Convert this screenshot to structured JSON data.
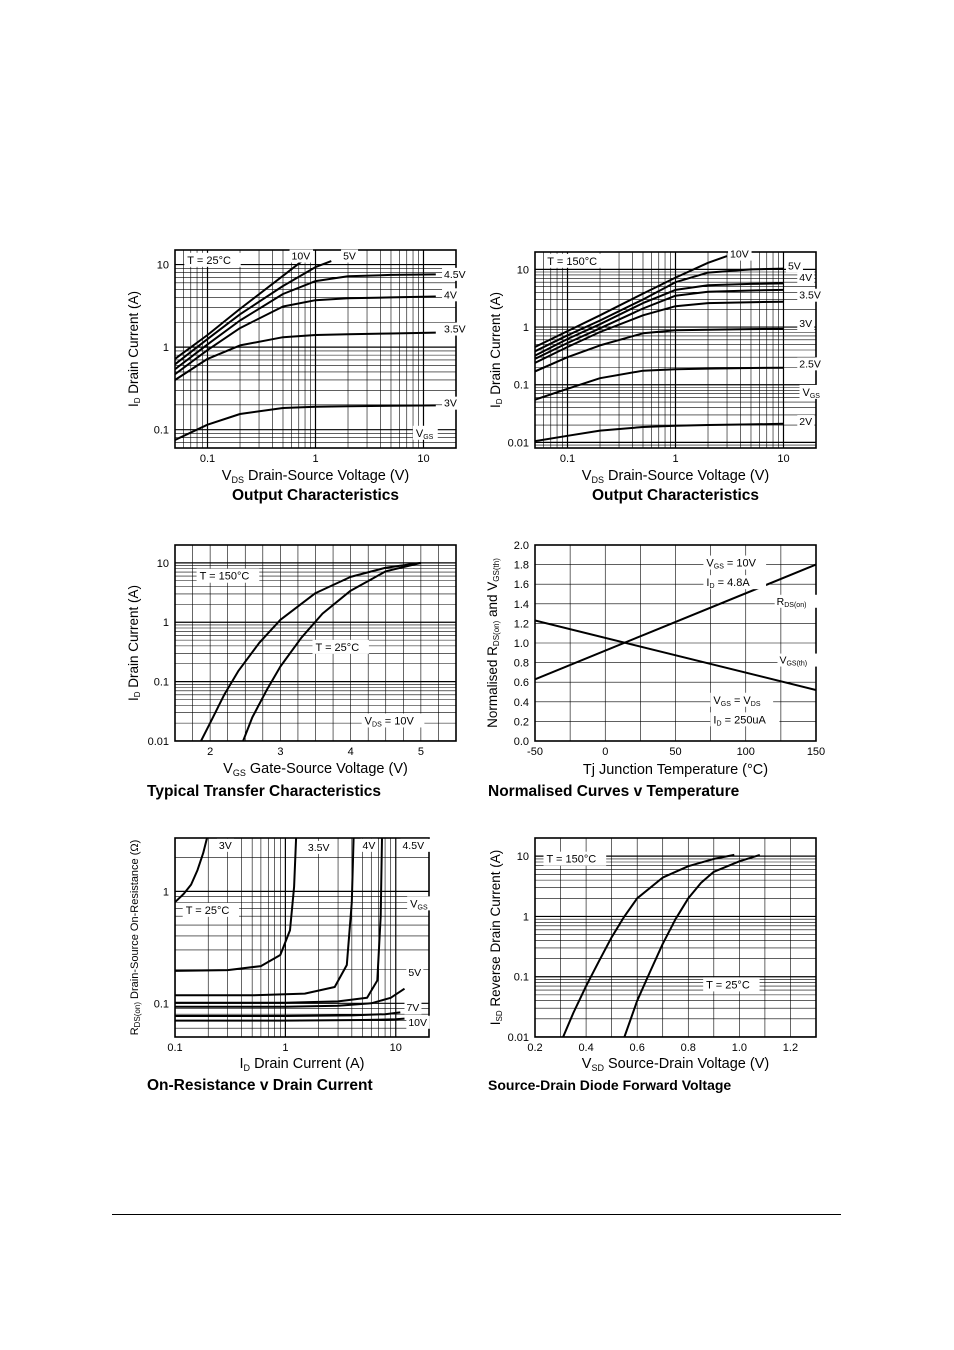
{
  "chart_data": [
    {
      "id": "c1",
      "type": "line",
      "title": "Output Characteristics",
      "xlabel": "V_DS Drain-Source Voltage (V)",
      "ylabel": "I_D Drain Current (A)",
      "xscale": "log",
      "yscale": "log",
      "xlim": [
        0.05,
        20
      ],
      "ylim": [
        0.06,
        15
      ],
      "xticks": [
        {
          "v": 0.1,
          "t": "0.1"
        },
        {
          "v": 1,
          "t": "1"
        },
        {
          "v": 10,
          "t": "10"
        }
      ],
      "yticks": [
        {
          "v": 0.1,
          "t": "0.1"
        },
        {
          "v": 1,
          "t": "1"
        },
        {
          "v": 10,
          "t": "10"
        }
      ],
      "annotations": [
        {
          "text": "T = 25°C",
          "x": 0.065,
          "y": 10.2
        },
        {
          "text": "V_GS",
          "x": 8.5,
          "y": 0.082
        }
      ],
      "series": [
        {
          "name": "10V",
          "label_at": [
            0.6,
            11.5
          ],
          "x": [
            0.05,
            0.1,
            0.2,
            0.5,
            0.75
          ],
          "y": [
            0.72,
            1.4,
            2.9,
            7.3,
            11
          ]
        },
        {
          "name": "5V",
          "label_at": [
            1.8,
            11.5
          ],
          "x": [
            0.05,
            0.1,
            0.2,
            0.5,
            1,
            1.4
          ],
          "y": [
            0.62,
            1.25,
            2.5,
            5.5,
            9.3,
            11
          ]
        },
        {
          "name": "4.5V",
          "label_at": [
            15.5,
            6.9
          ],
          "x": [
            0.05,
            0.1,
            0.2,
            0.5,
            1,
            2,
            5,
            13
          ],
          "y": [
            0.54,
            1.08,
            2.1,
            4.4,
            6.3,
            7.2,
            7.5,
            7.6
          ]
        },
        {
          "name": "4V",
          "label_at": [
            15.5,
            3.9
          ],
          "x": [
            0.05,
            0.1,
            0.2,
            0.5,
            1,
            2,
            5,
            13
          ],
          "y": [
            0.47,
            0.92,
            1.7,
            3.1,
            3.7,
            3.9,
            4.0,
            4.1
          ]
        },
        {
          "name": "3.5V",
          "label_at": [
            15.5,
            1.5
          ],
          "x": [
            0.05,
            0.1,
            0.2,
            0.5,
            1,
            2,
            5,
            13
          ],
          "y": [
            0.4,
            0.72,
            1.05,
            1.32,
            1.4,
            1.43,
            1.46,
            1.5
          ]
        },
        {
          "name": "3V",
          "label_at": [
            15.5,
            0.19
          ],
          "x": [
            0.05,
            0.1,
            0.2,
            0.5,
            1,
            2,
            5,
            13
          ],
          "y": [
            0.075,
            0.115,
            0.155,
            0.183,
            0.19,
            0.192,
            0.195,
            0.197
          ]
        }
      ]
    },
    {
      "id": "c2",
      "type": "line",
      "title": "Output Characteristics",
      "xlabel": "V_DS Drain-Source Voltage (V)",
      "ylabel": "I_D Drain Current (A)",
      "xscale": "log",
      "yscale": "log",
      "xlim": [
        0.05,
        20
      ],
      "ylim": [
        0.008,
        20
      ],
      "xticks": [
        {
          "v": 0.1,
          "t": "0.1"
        },
        {
          "v": 1,
          "t": "1"
        },
        {
          "v": 10,
          "t": "10"
        }
      ],
      "yticks": [
        {
          "v": 0.01,
          "t": "0.01"
        },
        {
          "v": 0.1,
          "t": "0.1"
        },
        {
          "v": 1,
          "t": "1"
        },
        {
          "v": 10,
          "t": "10"
        }
      ],
      "annotations": [
        {
          "text": "T = 150°C",
          "x": 0.065,
          "y": 12
        },
        {
          "text": "V_GS",
          "x": 15,
          "y": 0.064
        }
      ],
      "series": [
        {
          "name": "10V",
          "label_at": [
            3.2,
            16
          ],
          "x": [
            0.05,
            0.1,
            0.2,
            0.5,
            1,
            2,
            3
          ],
          "y": [
            0.45,
            0.85,
            1.6,
            3.8,
            7.2,
            13,
            17
          ]
        },
        {
          "name": "5V",
          "label_at": [
            11,
            10
          ],
          "x": [
            0.05,
            0.1,
            0.2,
            0.5,
            1,
            2,
            5,
            10
          ],
          "y": [
            0.38,
            0.72,
            1.3,
            3.0,
            6.0,
            8.8,
            10,
            10.3
          ]
        },
        {
          "name": "4V",
          "label_at": [
            14,
            6.3
          ],
          "x": [
            0.05,
            0.1,
            0.2,
            0.5,
            1,
            2,
            5,
            10
          ],
          "y": [
            0.32,
            0.62,
            1.12,
            2.6,
            4.4,
            5.3,
            5.6,
            5.7
          ]
        },
        {
          "name": "",
          "x": [
            0.05,
            0.1,
            0.2,
            0.5,
            1,
            2,
            5,
            10
          ],
          "y": [
            0.28,
            0.53,
            0.95,
            2.1,
            3.5,
            4.1,
            4.3,
            4.4
          ]
        },
        {
          "name": "3.5V",
          "label_at": [
            14,
            3.1
          ],
          "x": [
            0.05,
            0.1,
            0.2,
            0.5,
            1,
            2,
            5,
            10
          ],
          "y": [
            0.24,
            0.45,
            0.82,
            1.6,
            2.3,
            2.6,
            2.7,
            2.75
          ]
        },
        {
          "name": "3V",
          "label_at": [
            14,
            1.0
          ],
          "x": [
            0.05,
            0.1,
            0.2,
            0.5,
            1,
            2,
            5,
            10
          ],
          "y": [
            0.17,
            0.3,
            0.48,
            0.78,
            0.88,
            0.9,
            0.92,
            0.93
          ]
        },
        {
          "name": "2.5V",
          "label_at": [
            14,
            0.2
          ],
          "x": [
            0.05,
            0.1,
            0.2,
            0.5,
            1,
            2,
            5,
            10
          ],
          "y": [
            0.055,
            0.085,
            0.13,
            0.175,
            0.185,
            0.19,
            0.195,
            0.197
          ]
        },
        {
          "name": "2V",
          "label_at": [
            14,
            0.02
          ],
          "x": [
            0.05,
            0.1,
            0.2,
            0.5,
            1,
            2,
            5,
            10
          ],
          "y": [
            0.0105,
            0.013,
            0.016,
            0.0185,
            0.0195,
            0.02,
            0.0205,
            0.021
          ]
        }
      ]
    },
    {
      "id": "c3",
      "type": "line",
      "title": "Typical Transfer Characteristics",
      "xlabel": "V_GS Gate-Source Voltage (V)",
      "ylabel": "I_D Drain Current (A)",
      "xscale": "linear",
      "yscale": "log",
      "xlim": [
        1.5,
        5.5
      ],
      "ylim": [
        0.01,
        20
      ],
      "xticks": [
        {
          "v": 2,
          "t": "2"
        },
        {
          "v": 3,
          "t": "3"
        },
        {
          "v": 4,
          "t": "4"
        },
        {
          "v": 5,
          "t": "5"
        }
      ],
      "yticks": [
        {
          "v": 0.01,
          "t": "0.01"
        },
        {
          "v": 0.1,
          "t": "0.1"
        },
        {
          "v": 1,
          "t": "1"
        },
        {
          "v": 10,
          "t": "10"
        }
      ],
      "annotations": [
        {
          "text": "T = 150°C",
          "x": 1.85,
          "y": 5.2
        },
        {
          "text": "T = 25°C",
          "x": 3.5,
          "y": 0.33
        },
        {
          "text": "V_DS = 10V",
          "x": 4.2,
          "y": 0.019
        }
      ],
      "series": [
        {
          "name": "T = 150°C",
          "x": [
            1.87,
            2.0,
            2.2,
            2.4,
            2.7,
            3.0,
            3.5,
            4.0,
            4.5,
            5.0
          ],
          "y": [
            0.01,
            0.02,
            0.06,
            0.15,
            0.45,
            1.1,
            3.1,
            5.8,
            8.3,
            10
          ]
        },
        {
          "name": "T = 25°C",
          "x": [
            2.47,
            2.6,
            2.8,
            3.0,
            3.3,
            3.6,
            4.0,
            4.5,
            5.0
          ],
          "y": [
            0.01,
            0.025,
            0.07,
            0.18,
            0.55,
            1.4,
            3.4,
            7.2,
            10
          ]
        }
      ]
    },
    {
      "id": "c4",
      "type": "line",
      "title": "Normalised Curves v Temperature",
      "xlabel": "Tj Junction Temperature (°C)",
      "ylabel": "Normalised R_DS(on) and V_GS(th)",
      "xscale": "linear",
      "yscale": "linear",
      "xlim": [
        -50,
        150
      ],
      "ylim": [
        0,
        2.0
      ],
      "xticks": [
        {
          "v": -50,
          "t": "-50"
        },
        {
          "v": 0,
          "t": "0"
        },
        {
          "v": 50,
          "t": "50"
        },
        {
          "v": 100,
          "t": "100"
        },
        {
          "v": 150,
          "t": "150"
        }
      ],
      "yticks": [
        {
          "v": 0,
          "t": "0.0"
        },
        {
          "v": 0.2,
          "t": "0.2"
        },
        {
          "v": 0.4,
          "t": "0.4"
        },
        {
          "v": 0.6,
          "t": "0.6"
        },
        {
          "v": 0.8,
          "t": "0.8"
        },
        {
          "v": 1.0,
          "t": "1.0"
        },
        {
          "v": 1.2,
          "t": "1.2"
        },
        {
          "v": 1.4,
          "t": "1.4"
        },
        {
          "v": 1.6,
          "t": "1.6"
        },
        {
          "v": 1.8,
          "t": "1.8"
        },
        {
          "v": 2.0,
          "t": "2.0"
        }
      ],
      "annotations": [
        {
          "text": "V_GS = 10V",
          "x": 72,
          "y": 1.78
        },
        {
          "text": "I_D = 4.8A",
          "x": 72,
          "y": 1.58
        },
        {
          "text": "V_GS = V_DS",
          "x": 77,
          "y": 0.38
        },
        {
          "text": "I_D = 250uA",
          "x": 77,
          "y": 0.18
        }
      ],
      "series": [
        {
          "name": "R_DS(on)",
          "label_at": [
            122,
            1.39
          ],
          "x": [
            -50,
            150
          ],
          "y": [
            0.63,
            1.8
          ]
        },
        {
          "name": "V_GS(th)",
          "label_at": [
            124,
            0.79
          ],
          "x": [
            -50,
            150
          ],
          "y": [
            1.23,
            0.52
          ]
        }
      ]
    },
    {
      "id": "c5",
      "type": "line",
      "title": "On-Resistance v Drain Current",
      "xlabel": "I_D Drain Current (A)",
      "ylabel": "R_DS(on) Drain-Source On-Resistance (Ω)",
      "xscale": "log",
      "yscale": "log",
      "xlim": [
        0.1,
        20
      ],
      "ylim": [
        0.05,
        3
      ],
      "xticks": [
        {
          "v": 0.1,
          "t": "0.1"
        },
        {
          "v": 1,
          "t": "1"
        },
        {
          "v": 10,
          "t": "10"
        }
      ],
      "yticks": [
        {
          "v": 0.1,
          "t": "0.1"
        },
        {
          "v": 1,
          "t": "1"
        }
      ],
      "annotations": [
        {
          "text": "T = 25°C",
          "x": 0.125,
          "y": 0.63
        },
        {
          "text": "V_GS",
          "x": 13.5,
          "y": 0.72
        }
      ],
      "series": [
        {
          "name": "3V",
          "label_at": [
            0.25,
            2.4
          ],
          "x": [
            0.1,
            0.12,
            0.14,
            0.16,
            0.18,
            0.195
          ],
          "y": [
            0.8,
            0.95,
            1.15,
            1.55,
            2.2,
            3.0
          ]
        },
        {
          "name": "3.5V",
          "label_at": [
            1.6,
            2.3
          ],
          "x": [
            0.1,
            0.3,
            0.6,
            0.9,
            1.1,
            1.2,
            1.25
          ],
          "y": [
            0.195,
            0.198,
            0.215,
            0.27,
            0.45,
            1.1,
            3.0
          ]
        },
        {
          "name": "4V",
          "label_at": [
            5.0,
            2.4
          ],
          "x": [
            0.1,
            0.5,
            1.5,
            2.8,
            3.6,
            4.0,
            4.15
          ],
          "y": [
            0.118,
            0.118,
            0.122,
            0.14,
            0.22,
            0.8,
            3.0
          ]
        },
        {
          "name": "4.5V",
          "label_at": [
            11.5,
            2.4
          ],
          "x": [
            0.1,
            1,
            3,
            5.5,
            6.8,
            7.3,
            7.5
          ],
          "y": [
            0.101,
            0.101,
            0.104,
            0.112,
            0.16,
            0.6,
            3.0
          ]
        },
        {
          "name": "5V",
          "label_at": [
            13,
            0.175
          ],
          "x": [
            0.1,
            1,
            3,
            6,
            9,
            12
          ],
          "y": [
            0.093,
            0.093,
            0.095,
            0.1,
            0.112,
            0.135
          ]
        },
        {
          "name": "7V",
          "label_at": [
            12.5,
            0.085
          ],
          "x": [
            0.1,
            1,
            4,
            8,
            11
          ],
          "y": [
            0.077,
            0.077,
            0.078,
            0.08,
            0.083
          ]
        },
        {
          "name": "10V",
          "label_at": [
            13,
            0.063
          ],
          "x": [
            0.1,
            1,
            5,
            10,
            12
          ],
          "y": [
            0.07,
            0.07,
            0.071,
            0.072,
            0.073
          ]
        }
      ]
    },
    {
      "id": "c6",
      "type": "line",
      "title": "Source-Drain Diode Forward Voltage",
      "xlabel": "V_SD Source-Drain Voltage (V)",
      "ylabel": "I_SD Reverse Drain Current (A)",
      "xscale": "linear",
      "yscale": "log",
      "xlim": [
        0.2,
        1.3
      ],
      "ylim": [
        0.01,
        20
      ],
      "xticks": [
        {
          "v": 0.2,
          "t": "0.2"
        },
        {
          "v": 0.4,
          "t": "0.4"
        },
        {
          "v": 0.6,
          "t": "0.6"
        },
        {
          "v": 0.8,
          "t": "0.8"
        },
        {
          "v": 1.0,
          "t": "1.0"
        },
        {
          "v": 1.2,
          "t": "1.2"
        }
      ],
      "yticks": [
        {
          "v": 0.01,
          "t": "0.01"
        },
        {
          "v": 0.1,
          "t": "0.1"
        },
        {
          "v": 1,
          "t": "1"
        },
        {
          "v": 10,
          "t": "10"
        }
      ],
      "annotations": [
        {
          "text": "T = 150°C",
          "x": 0.245,
          "y": 7.8
        },
        {
          "text": "T = 25°C",
          "x": 0.87,
          "y": 0.064
        }
      ],
      "series": [
        {
          "name": "T = 150°C",
          "x": [
            0.31,
            0.35,
            0.4,
            0.45,
            0.5,
            0.55,
            0.6,
            0.7,
            0.8,
            0.9,
            0.98
          ],
          "y": [
            0.01,
            0.025,
            0.07,
            0.18,
            0.45,
            1.0,
            2.0,
            4.4,
            6.8,
            9.0,
            10.5
          ]
        },
        {
          "name": "T = 25°C",
          "x": [
            0.55,
            0.6,
            0.65,
            0.7,
            0.75,
            0.8,
            0.85,
            0.9,
            1.0,
            1.08
          ],
          "y": [
            0.01,
            0.04,
            0.12,
            0.35,
            0.9,
            2.0,
            3.6,
            5.5,
            8.2,
            10.5
          ]
        }
      ]
    }
  ]
}
